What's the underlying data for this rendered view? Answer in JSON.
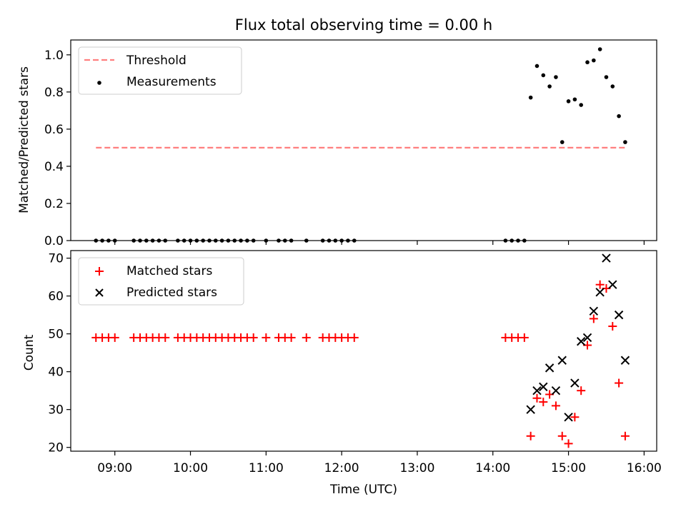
{
  "chart_data": [
    {
      "type": "scatter",
      "title": "Flux total observing time = 0.00 h",
      "xlabel": "",
      "ylabel": "Matched/Predicted stars",
      "ylim": [
        0,
        1.08
      ],
      "yticks": [
        "0.0",
        "0.2",
        "0.4",
        "0.6",
        "0.8",
        "1.0"
      ],
      "legend_position": "top-left",
      "grid": false,
      "colors": {
        "threshold": "#ff7f7f",
        "measurements": "#000000"
      },
      "threshold": {
        "name": "Threshold",
        "value": 0.5,
        "x_start": "08:45",
        "x_end": "15:45"
      },
      "series": [
        {
          "name": "Measurements",
          "x": [
            "08:45",
            "08:50",
            "08:55",
            "09:00",
            "09:15",
            "09:20",
            "09:25",
            "09:30",
            "09:35",
            "09:40",
            "09:50",
            "09:55",
            "10:00",
            "10:05",
            "10:10",
            "10:15",
            "10:20",
            "10:25",
            "10:30",
            "10:35",
            "10:40",
            "10:45",
            "10:50",
            "11:00",
            "11:10",
            "11:15",
            "11:20",
            "11:32",
            "11:45",
            "11:50",
            "11:55",
            "12:00",
            "12:05",
            "12:10",
            "14:10",
            "14:15",
            "14:20",
            "14:25",
            "14:30",
            "14:35",
            "14:40",
            "14:45",
            "14:50",
            "14:55",
            "15:00",
            "15:05",
            "15:10",
            "15:15",
            "15:20",
            "15:25",
            "15:30",
            "15:35",
            "15:40",
            "15:45"
          ],
          "y": [
            0,
            0,
            0,
            0,
            0,
            0,
            0,
            0,
            0,
            0,
            0,
            0,
            0,
            0,
            0,
            0,
            0,
            0,
            0,
            0,
            0,
            0,
            0,
            0,
            0,
            0,
            0,
            0,
            0,
            0,
            0,
            0,
            0,
            0,
            0,
            0,
            0,
            0,
            0.77,
            0.94,
            0.89,
            0.83,
            0.88,
            0.53,
            0.75,
            0.76,
            0.73,
            0.96,
            0.97,
            1.03,
            0.88,
            0.83,
            0.67,
            0.53
          ]
        }
      ]
    },
    {
      "type": "scatter",
      "title": "",
      "xlabel": "Time (UTC)",
      "ylabel": "Count",
      "ylim": [
        19,
        72
      ],
      "yticks": [
        "20",
        "30",
        "40",
        "50",
        "60",
        "70"
      ],
      "xlim": [
        "08:25",
        "16:10"
      ],
      "xticks": [
        "09:00",
        "10:00",
        "11:00",
        "12:00",
        "13:00",
        "14:00",
        "15:00",
        "16:00"
      ],
      "legend_position": "top-left",
      "grid": false,
      "colors": {
        "matched": "#ff0000",
        "predicted": "#000000"
      },
      "series": [
        {
          "name": "Matched stars",
          "x": [
            "08:45",
            "08:50",
            "08:55",
            "09:00",
            "09:15",
            "09:20",
            "09:25",
            "09:30",
            "09:35",
            "09:40",
            "09:50",
            "09:55",
            "10:00",
            "10:05",
            "10:10",
            "10:15",
            "10:20",
            "10:25",
            "10:30",
            "10:35",
            "10:40",
            "10:45",
            "10:50",
            "11:00",
            "11:10",
            "11:15",
            "11:20",
            "11:32",
            "11:45",
            "11:50",
            "11:55",
            "12:00",
            "12:05",
            "12:10",
            "14:10",
            "14:15",
            "14:20",
            "14:25",
            "14:30",
            "14:35",
            "14:40",
            "14:45",
            "14:50",
            "14:55",
            "15:00",
            "15:05",
            "15:10",
            "15:15",
            "15:20",
            "15:25",
            "15:30",
            "15:35",
            "15:40",
            "15:45"
          ],
          "y": [
            49,
            49,
            49,
            49,
            49,
            49,
            49,
            49,
            49,
            49,
            49,
            49,
            49,
            49,
            49,
            49,
            49,
            49,
            49,
            49,
            49,
            49,
            49,
            49,
            49,
            49,
            49,
            49,
            49,
            49,
            49,
            49,
            49,
            49,
            49,
            49,
            49,
            49,
            23,
            33,
            32,
            34,
            31,
            23,
            21,
            28,
            35,
            47,
            54,
            63,
            62,
            52,
            37,
            23
          ]
        },
        {
          "name": "Predicted stars",
          "x": [
            "14:30",
            "14:35",
            "14:40",
            "14:45",
            "14:50",
            "14:55",
            "15:00",
            "15:05",
            "15:10",
            "15:15",
            "15:20",
            "15:25",
            "15:30",
            "15:35",
            "15:40",
            "15:45"
          ],
          "y": [
            30,
            35,
            36,
            41,
            35,
            43,
            28,
            37,
            48,
            49,
            56,
            61,
            70,
            63,
            55,
            43
          ]
        }
      ]
    }
  ]
}
